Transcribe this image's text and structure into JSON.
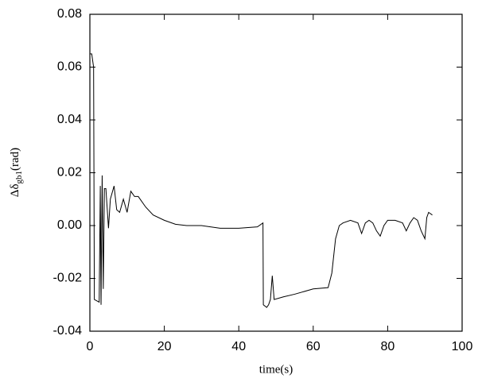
{
  "chart_data": {
    "type": "line",
    "xlabel": "time(s)",
    "ylabel": {
      "main": "Δδ",
      "sub": "gb1",
      "unit": "(rad)"
    },
    "color": "#000000",
    "xlim": [
      0,
      100
    ],
    "xticks": [
      0,
      20,
      40,
      60,
      80,
      100
    ],
    "ylim": [
      -0.04,
      0.08
    ],
    "yticks": [
      -0.04,
      -0.02,
      {
        "value": 0,
        "label": "0.00"
      },
      0.02,
      0.04,
      0.06,
      0.08
    ],
    "x": [
      0,
      0.5,
      1,
      1.2,
      2.5,
      2.8,
      3.0,
      3.3,
      3.6,
      3.9,
      4.3,
      5,
      5.5,
      6.5,
      7.2,
      8,
      9,
      10,
      11,
      12,
      13,
      15,
      17,
      20,
      23,
      26,
      30,
      35,
      40,
      45,
      46.5,
      46.6,
      47.5,
      48,
      48.5,
      49,
      49.5,
      52,
      55,
      60,
      64,
      65,
      66,
      67,
      68,
      70,
      72,
      73,
      74,
      75,
      76,
      77,
      78,
      79,
      80,
      82,
      84,
      85,
      86,
      87,
      88,
      89,
      90,
      90.5,
      91,
      92
    ],
    "values": [
      0.065,
      0.065,
      0.06,
      -0.028,
      -0.029,
      0.015,
      -0.03,
      0.019,
      -0.024,
      0.014,
      0.014,
      -0.001,
      0.01,
      0.015,
      0.006,
      0.005,
      0.01,
      0.005,
      0.013,
      0.011,
      0.011,
      0.007,
      0.004,
      0.002,
      0.0005,
      0,
      0,
      -0.001,
      -0.001,
      -0.0005,
      0.001,
      -0.03,
      -0.031,
      -0.03,
      -0.028,
      -0.019,
      -0.028,
      -0.027,
      -0.026,
      -0.024,
      -0.0235,
      -0.018,
      -0.005,
      0,
      0.001,
      0.002,
      0.001,
      -0.003,
      0.001,
      0.002,
      0.001,
      -0.002,
      -0.004,
      0,
      0.002,
      0.002,
      0.001,
      -0.002,
      0.001,
      0.003,
      0.002,
      -0.002,
      -0.005,
      0.003,
      0.005,
      0.004
    ]
  }
}
